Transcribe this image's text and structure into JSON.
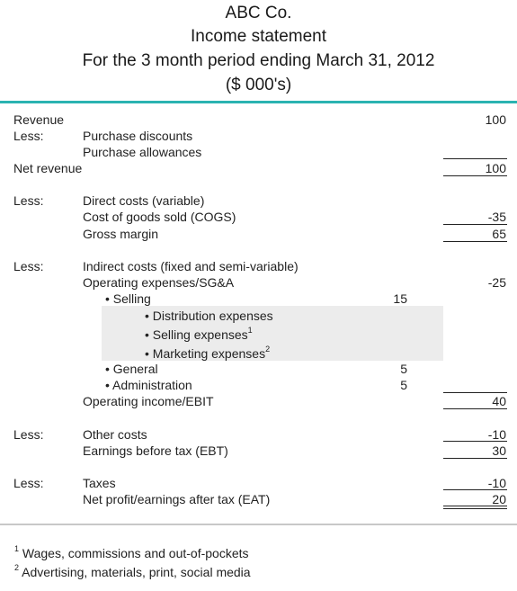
{
  "header": {
    "company": "ABC Co.",
    "title": "Income statement",
    "period": "For the 3 month period ending March 31, 2012",
    "units": "($ 000's)"
  },
  "rows": {
    "revenue": {
      "label": "Revenue",
      "value": "100"
    },
    "less1": "Less:",
    "purchase_discounts": "Purchase discounts",
    "purchase_allowances": "Purchase allowances",
    "net_revenue": {
      "label": "Net revenue",
      "value": "100"
    },
    "less2": "Less:",
    "direct_costs": "Direct costs (variable)",
    "cogs": {
      "label": "Cost of goods sold (COGS)",
      "value": "-35"
    },
    "gross_margin": {
      "label": "Gross margin",
      "value": "65"
    },
    "less3": "Less:",
    "indirect_costs": "Indirect costs (fixed and semi-variable)",
    "opex": {
      "label": "Operating expenses/SG&A",
      "value": "-25"
    },
    "selling": {
      "label": "• Selling",
      "value": "15"
    },
    "distribution": "• Distribution expenses",
    "selling_expenses": "• Selling expenses",
    "selling_expenses_note": "1",
    "marketing": "• Marketing expenses",
    "marketing_note": "2",
    "general": {
      "label": "• General",
      "value": "5"
    },
    "administration": {
      "label": "• Administration",
      "value": "5"
    },
    "ebit": {
      "label": "Operating income/EBIT",
      "value": "40"
    },
    "less4": "Less:",
    "other_costs": {
      "label": "Other costs",
      "value": "-10"
    },
    "ebt": {
      "label": "Earnings before tax (EBT)",
      "value": "30"
    },
    "less5": "Less:",
    "taxes": {
      "label": "Taxes",
      "value": "-10"
    },
    "eat": {
      "label": "Net profit/earnings after tax (EAT)",
      "value": "20"
    }
  },
  "footnotes": [
    {
      "mark": "1",
      "text": "Wages, commissions and out-of-pockets"
    },
    {
      "mark": "2",
      "text": "Advertising, materials, print, social media"
    }
  ],
  "colors": {
    "accent_rule": "#2bb3b1",
    "shade": "#ececec"
  }
}
